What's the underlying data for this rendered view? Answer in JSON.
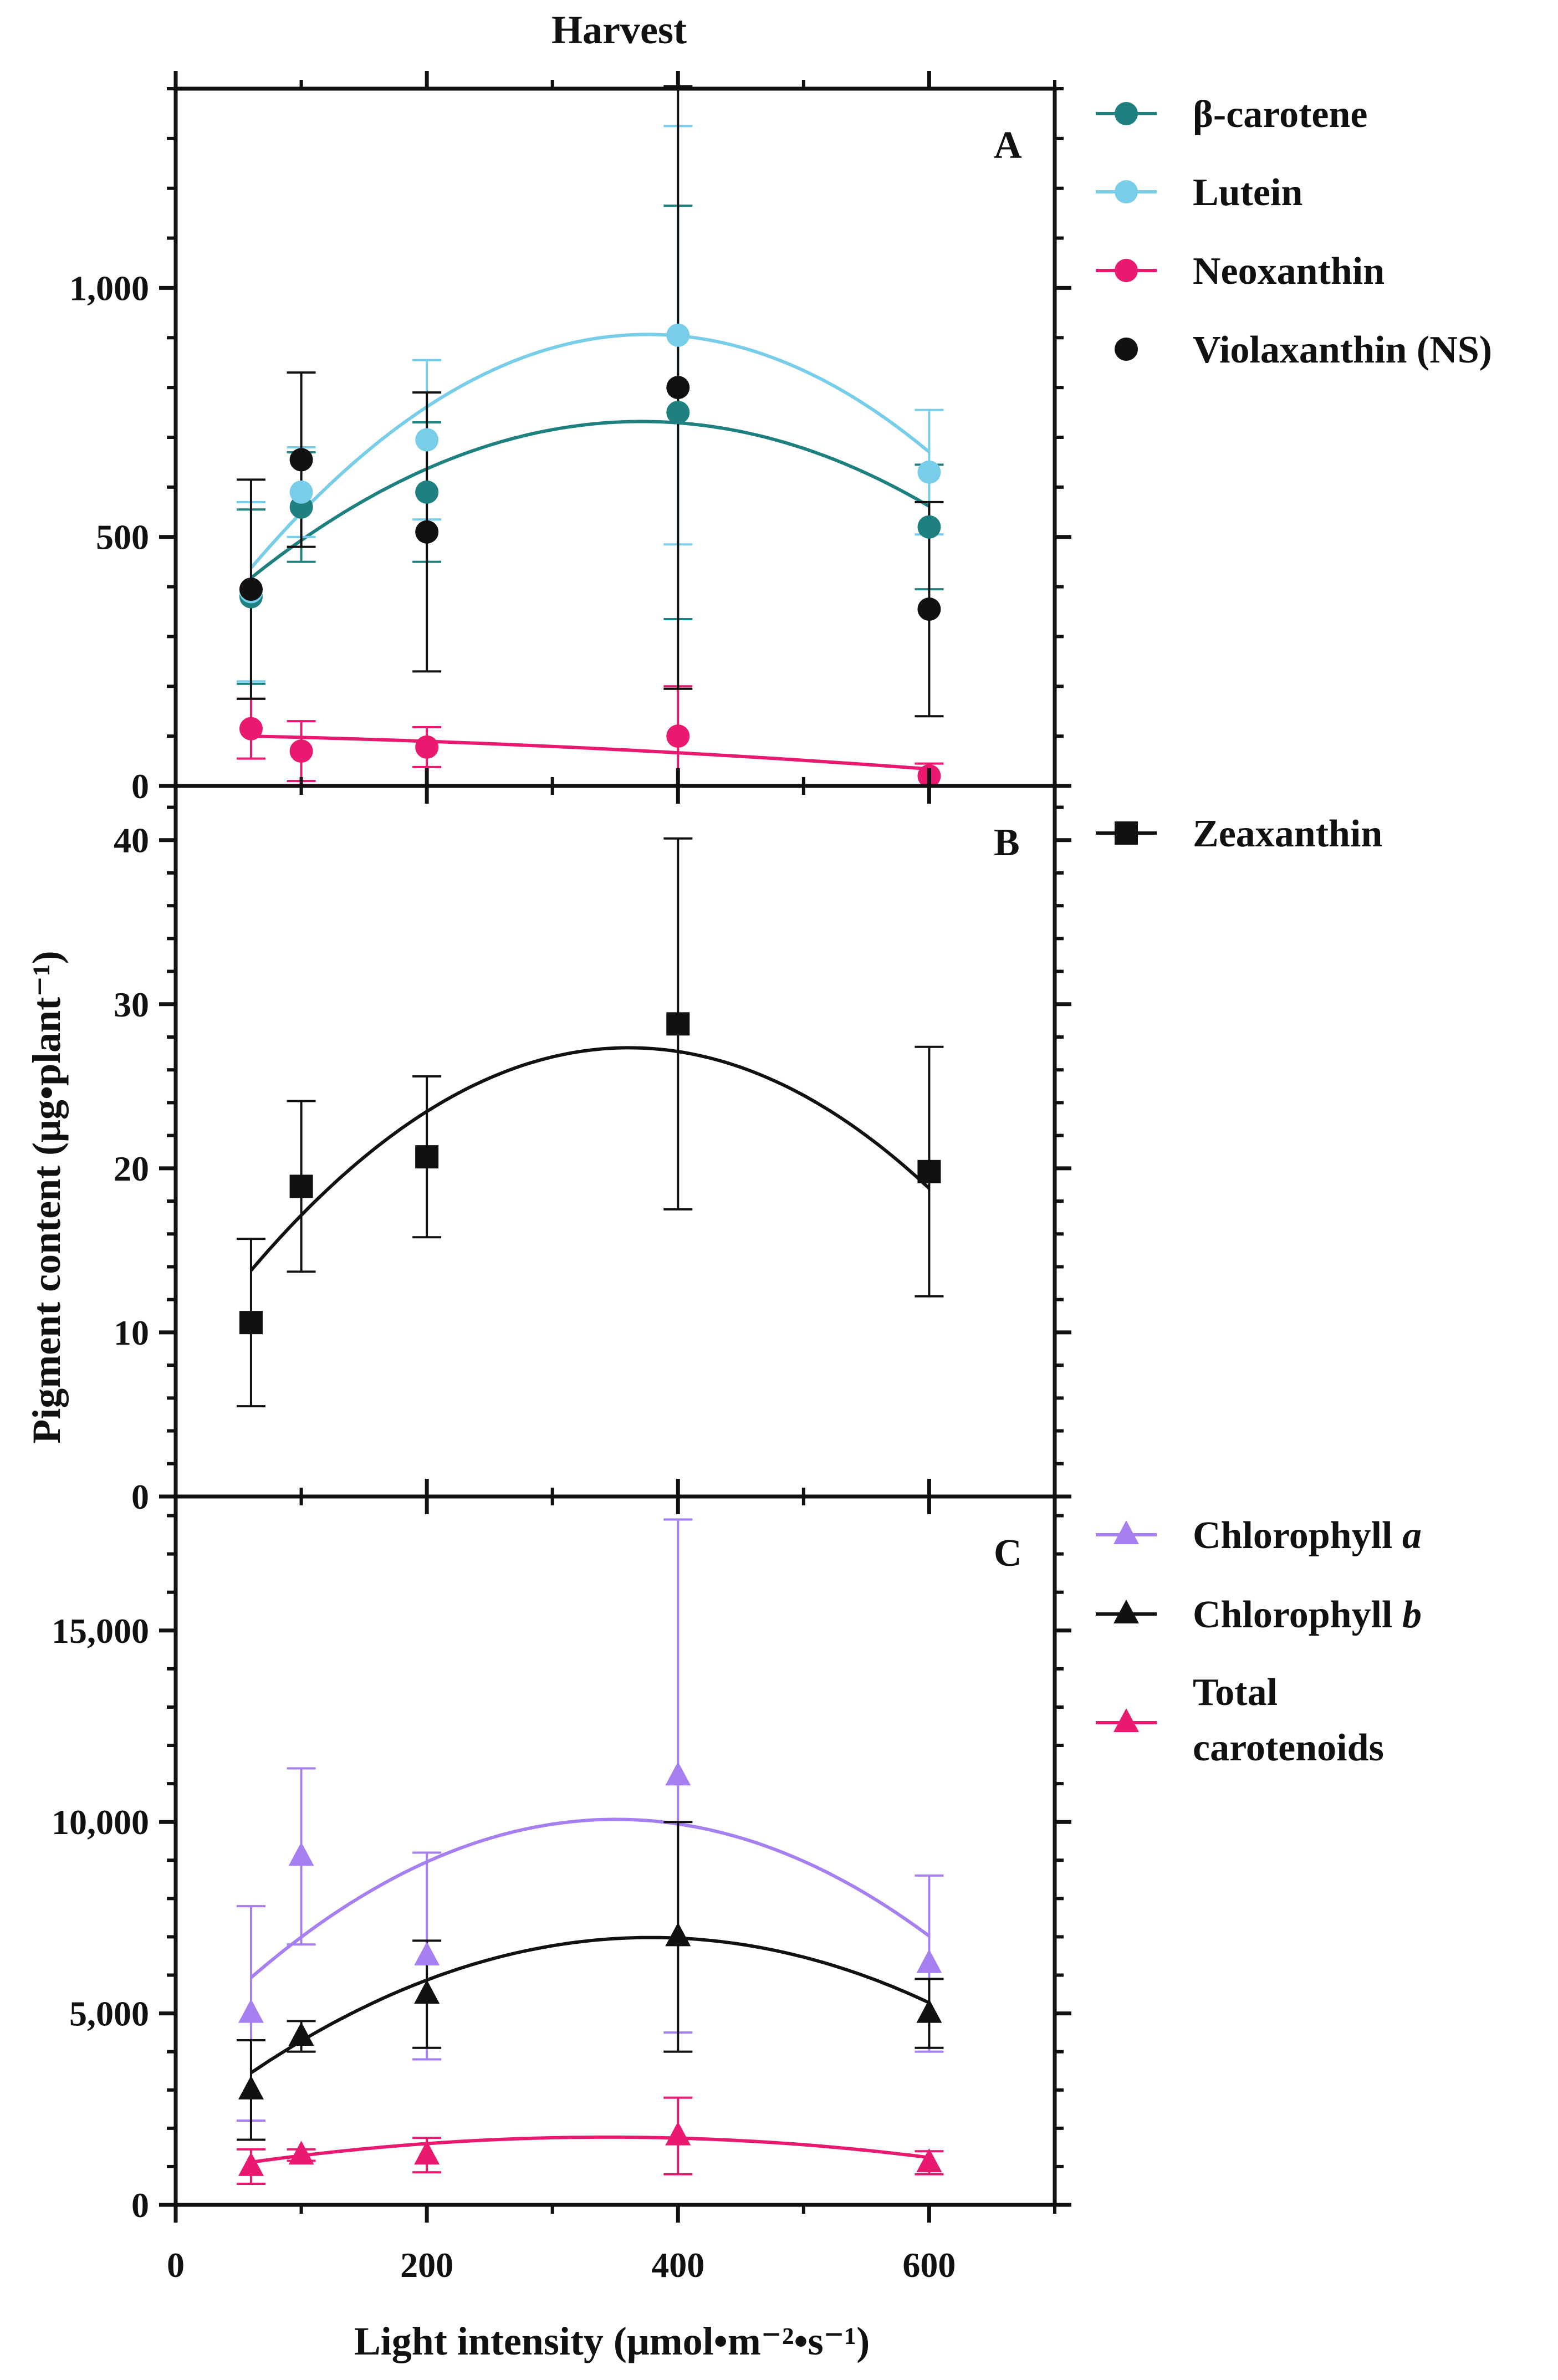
{
  "title": "Harvest",
  "xlabel": "Light intensity (μmol•m⁻²•s⁻¹)",
  "ylabel": "Pigment content (μg•plant⁻¹)",
  "colors": {
    "beta": "#1f8080",
    "lutein": "#78cde8",
    "neox": "#e8196e",
    "violax": "#111111",
    "zeax": "#111111",
    "chla": "#a67ff0",
    "chlb": "#111111",
    "tcar": "#e8196e"
  },
  "chart_data": [
    {
      "panel": "A",
      "type": "scatter",
      "xlim": [
        0,
        700
      ],
      "ylim": [
        0,
        1400
      ],
      "yticks": [
        0,
        500,
        1000
      ],
      "yticklabels": [
        "0",
        "500",
        "1,000"
      ],
      "series": [
        {
          "key": "beta",
          "name": "β-carotene",
          "marker": "circle",
          "fit": true,
          "x": [
            60,
            100,
            200,
            400,
            600
          ],
          "y": [
            380,
            560,
            590,
            750,
            520
          ],
          "err": [
            175,
            110,
            140,
            415,
            125
          ],
          "fit_coef": [
            284.7,
            2.4097,
            -0.003247
          ]
        },
        {
          "key": "lutein",
          "name": "Lutein",
          "marker": "circle",
          "fit": true,
          "x": [
            60,
            100,
            200,
            400,
            600
          ],
          "y": [
            390,
            590,
            695,
            905,
            630
          ],
          "err": [
            180,
            90,
            160,
            420,
            125
          ],
          "fit_coef": [
            242.3,
            3.5347,
            -0.004702
          ]
        },
        {
          "key": "neox",
          "name": "Neoxanthin",
          "marker": "circle",
          "fit": true,
          "x": [
            60,
            100,
            200,
            400,
            600
          ],
          "y": [
            115,
            70,
            78,
            100,
            20
          ],
          "err": [
            60,
            60,
            40,
            100,
            25
          ],
          "fit_coef": [
            103.0,
            -0.043,
            -0.00012
          ]
        },
        {
          "key": "violax",
          "name": "Violaxanthin (NS)",
          "marker": "circle",
          "fit": false,
          "x": [
            60,
            100,
            200,
            400,
            600
          ],
          "y": [
            395,
            655,
            510,
            800,
            355
          ],
          "err": [
            220,
            175,
            280,
            605,
            215
          ],
          "fit_coef": null
        }
      ]
    },
    {
      "panel": "B",
      "type": "scatter",
      "xlim": [
        0,
        700
      ],
      "ylim": [
        0,
        43.3
      ],
      "yticks": [
        0,
        10,
        20,
        30,
        40
      ],
      "yticklabels": [
        "0",
        "10",
        "20",
        "30",
        "40"
      ],
      "series": [
        {
          "key": "zeax",
          "name": "Zeaxanthin",
          "marker": "square",
          "fit": true,
          "x": [
            60,
            100,
            200,
            400,
            600
          ],
          "y": [
            10.6,
            18.9,
            20.7,
            28.8,
            19.8
          ],
          "err": [
            5.1,
            5.2,
            4.9,
            11.3,
            7.6
          ],
          "fit_coef": [
            7.82,
            0.1082,
            -0.0001499
          ]
        }
      ]
    },
    {
      "panel": "C",
      "type": "scatter",
      "xlim": [
        0,
        700
      ],
      "ylim": [
        0,
        18500
      ],
      "yticks": [
        0,
        5000,
        10000,
        15000
      ],
      "yticklabels": [
        "0",
        "5,000",
        "10,000",
        "15,000"
      ],
      "series": [
        {
          "key": "chla",
          "name": "Chlorophyll a",
          "name_main": "Chlorophyll ",
          "name_italic": "a",
          "marker": "triangle",
          "fit": true,
          "x": [
            60,
            100,
            200,
            400,
            600
          ],
          "y": [
            5000,
            9100,
            6500,
            11200,
            6300
          ],
          "err": [
            2800,
            2300,
            2700,
            6700,
            2300
          ],
          "fit_coef": [
            4049,
            34.34,
            -0.04898
          ]
        },
        {
          "key": "chlb",
          "name": "Chlorophyll b",
          "name_main": "Chlorophyll ",
          "name_italic": "b",
          "marker": "triangle",
          "fit": true,
          "x": [
            60,
            100,
            200,
            400,
            600
          ],
          "y": [
            3000,
            4400,
            5500,
            7000,
            5000
          ],
          "err": [
            1300,
            400,
            1400,
            3000,
            900
          ],
          "fit_coef": [
            1993,
            26.35,
            -0.03479
          ]
        },
        {
          "key": "tcar",
          "name": "Total carotenoids",
          "name_line1": "Total",
          "name_line2": "carotenoids",
          "marker": "triangle",
          "fit": true,
          "x": [
            60,
            100,
            200,
            400,
            600
          ],
          "y": [
            1000,
            1300,
            1300,
            1800,
            1100
          ],
          "err": [
            450,
            150,
            450,
            1000,
            300
          ],
          "fit_coef": [
            808.3,
            5.58,
            -0.008111
          ]
        }
      ]
    }
  ],
  "xticks": [
    0,
    200,
    400,
    600
  ],
  "xticklabels": [
    "0",
    "200",
    "400",
    "600"
  ],
  "panel_letters": [
    "A",
    "B",
    "C"
  ]
}
